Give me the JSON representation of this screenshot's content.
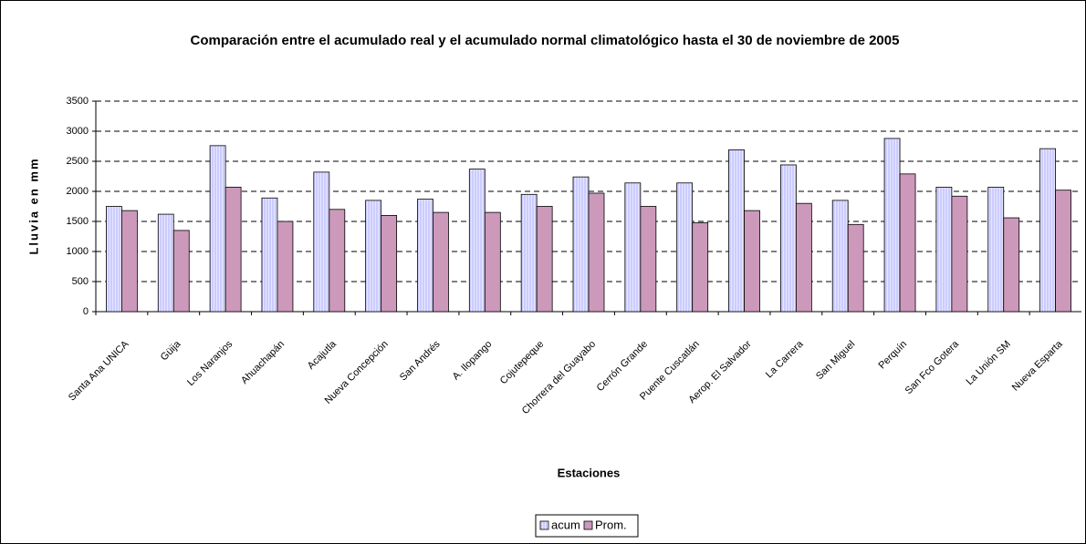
{
  "chart_data": {
    "type": "bar",
    "title": "Comparación entre el acumulado real y el acumulado normal climatológico hasta el 30 de noviembre de 2005",
    "x_label": "Estaciones",
    "y_label": "Lluvia en mm",
    "categories": [
      "Santa Ana UNICA",
      "Güija",
      "Los Naranjos",
      "Ahuachapán",
      "Acajutla",
      "Nueva Concepción",
      "San Andrés",
      "A. Ilopango",
      "Cojutepeque",
      "Chorrera del Guayabo",
      "Cerrón Grande",
      "Puente Cuscatlán",
      "Aerop. El Salvador",
      "La Carrera",
      "San Miguel",
      "Perquín",
      "San Fco Gotera",
      "La Unión SM",
      "Nueva Esparta"
    ],
    "series": [
      {
        "name": "acum",
        "color": "#ccccff",
        "values": [
          1750,
          1620,
          2760,
          1890,
          2320,
          1850,
          1870,
          2370,
          1950,
          2240,
          2140,
          2140,
          2690,
          2440,
          1850,
          2880,
          2070,
          2070,
          2710
        ]
      },
      {
        "name": "Prom.",
        "color": "#cc99bb",
        "values": [
          1680,
          1350,
          2070,
          1500,
          1700,
          1600,
          1650,
          1650,
          1750,
          1970,
          1750,
          1480,
          1680,
          1800,
          1450,
          2290,
          1920,
          1560,
          2020
        ]
      }
    ],
    "ylim": [
      0,
      3500
    ],
    "yticks": [
      0,
      500,
      1000,
      1500,
      2000,
      2500,
      3000,
      3500
    ],
    "grid": true,
    "legend": "bottom"
  }
}
